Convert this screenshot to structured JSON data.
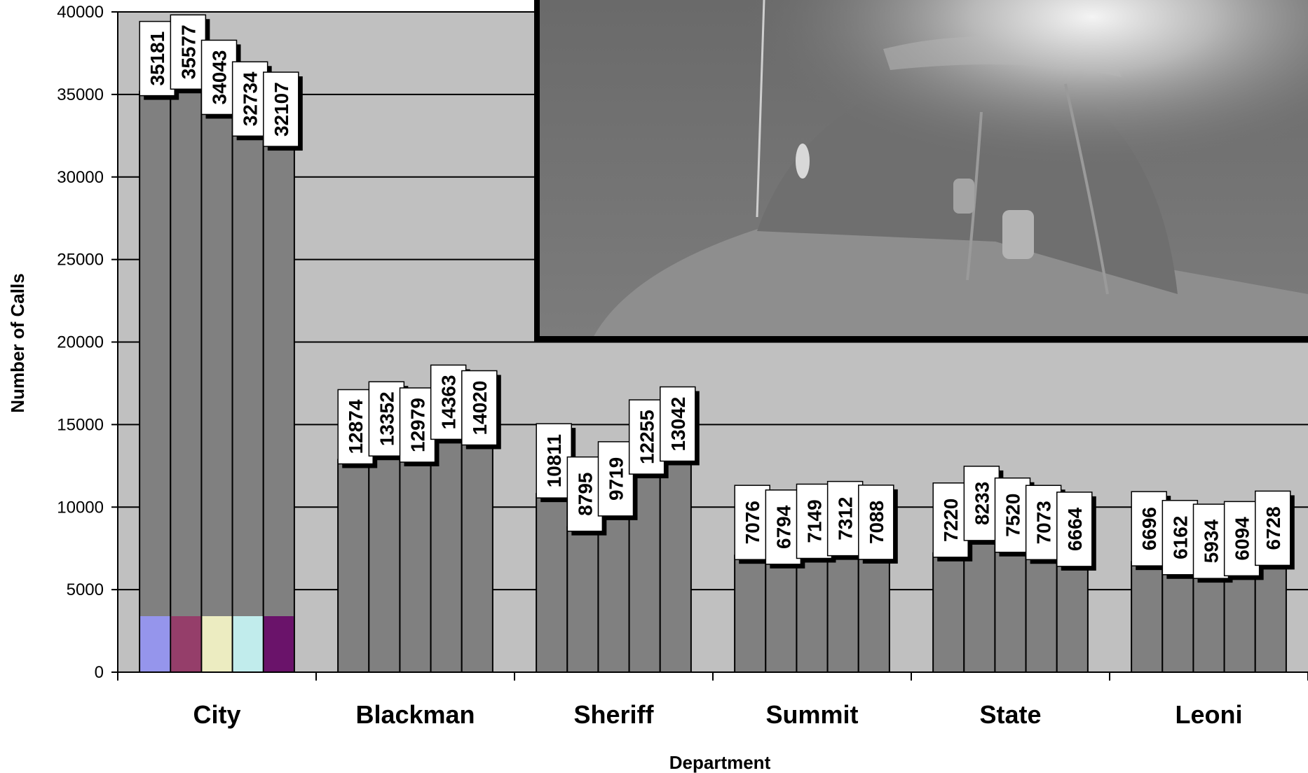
{
  "chart_data": {
    "type": "bar",
    "title": "",
    "xlabel": "Department",
    "ylabel": "Number of Calls",
    "ylim": [
      0,
      40000
    ],
    "yticks": [
      0,
      5000,
      10000,
      15000,
      20000,
      25000,
      30000,
      35000,
      40000
    ],
    "grid": true,
    "categories": [
      "City",
      "Blackman",
      "Sheriff",
      "Summit",
      "State",
      "Leoni"
    ],
    "series": [
      {
        "values": [
          35181,
          12874,
          10811,
          7076,
          7220,
          6696
        ]
      },
      {
        "values": [
          35577,
          13352,
          8795,
          6794,
          8233,
          6162
        ]
      },
      {
        "values": [
          34043,
          12979,
          9719,
          7149,
          7520,
          5934
        ]
      },
      {
        "values": [
          32734,
          14363,
          12255,
          7312,
          7073,
          6094
        ]
      },
      {
        "values": [
          32107,
          14020,
          13042,
          7088,
          6664,
          6728
        ]
      }
    ],
    "colors": {
      "plot_background": "#c0c0c0",
      "bar_fill": "#808080",
      "gridline": "#000000",
      "series_accent": [
        "#9999ff",
        "#993366",
        "#ffffcc",
        "#ccffff",
        "#660066"
      ]
    }
  },
  "overlay_photo": {
    "description_icon": "night-police-car-photo"
  }
}
